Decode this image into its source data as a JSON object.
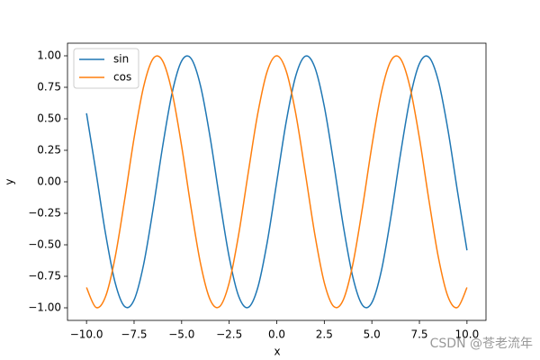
{
  "chart_data": {
    "type": "line",
    "xlabel": "x",
    "ylabel": "y",
    "x": [
      -10,
      -9.5,
      -9,
      -8.5,
      -8,
      -7.5,
      -7,
      -6.5,
      -6,
      -5.5,
      -5,
      -4.5,
      -4,
      -3.5,
      -3,
      -2.5,
      -2,
      -1.5,
      -1,
      -0.5,
      0,
      0.5,
      1,
      1.5,
      2,
      2.5,
      3,
      3.5,
      4,
      4.5,
      5,
      5.5,
      6,
      6.5,
      7,
      7.5,
      8,
      8.5,
      9,
      9.5,
      10
    ],
    "series": [
      {
        "name": "sin",
        "color": "#1f77b4",
        "values": [
          0.544,
          0.075,
          -0.412,
          -0.798,
          -0.989,
          -0.938,
          -0.657,
          -0.215,
          0.279,
          0.706,
          0.959,
          0.978,
          0.757,
          0.351,
          -0.141,
          -0.598,
          -0.909,
          -0.997,
          -0.841,
          -0.479,
          0,
          0.479,
          0.841,
          0.997,
          0.909,
          0.598,
          0.141,
          -0.351,
          -0.757,
          -0.978,
          -0.959,
          -0.706,
          -0.279,
          0.215,
          0.657,
          0.938,
          0.989,
          0.798,
          0.412,
          -0.075,
          -0.544
        ]
      },
      {
        "name": "cos",
        "color": "#ff7f0e",
        "values": [
          -0.839,
          -0.997,
          -0.911,
          -0.602,
          -0.146,
          0.347,
          0.754,
          0.977,
          0.96,
          0.709,
          0.284,
          -0.211,
          -0.654,
          -0.936,
          -0.99,
          -0.801,
          -0.416,
          0.071,
          0.54,
          0.878,
          1,
          0.878,
          0.54,
          0.071,
          -0.416,
          -0.801,
          -0.99,
          -0.936,
          -0.654,
          -0.211,
          0.284,
          0.709,
          0.96,
          0.977,
          0.754,
          0.347,
          -0.146,
          -0.602,
          -0.911,
          -0.997,
          -0.839
        ]
      }
    ],
    "xlim": [
      -11,
      11
    ],
    "ylim": [
      -1.1,
      1.1
    ],
    "xticks": [
      {
        "value": -10,
        "label": "−10.0"
      },
      {
        "value": -7.5,
        "label": "−7.5"
      },
      {
        "value": -5,
        "label": "−5.0"
      },
      {
        "value": -2.5,
        "label": "−2.5"
      },
      {
        "value": 0,
        "label": "0.0"
      },
      {
        "value": 2.5,
        "label": "2.5"
      },
      {
        "value": 5,
        "label": "5.0"
      },
      {
        "value": 7.5,
        "label": "7.5"
      },
      {
        "value": 10,
        "label": "10.0"
      }
    ],
    "yticks": [
      {
        "value": -1,
        "label": "−1.00"
      },
      {
        "value": -0.75,
        "label": "−0.75"
      },
      {
        "value": -0.5,
        "label": "−0.50"
      },
      {
        "value": -0.25,
        "label": "−0.25"
      },
      {
        "value": 0,
        "label": "0.00"
      },
      {
        "value": 0.25,
        "label": "0.25"
      },
      {
        "value": 0.5,
        "label": "0.50"
      },
      {
        "value": 0.75,
        "label": "0.75"
      },
      {
        "value": 1,
        "label": "1.00"
      }
    ],
    "legend": "upper left",
    "watermark": "CSDN @苍老流年"
  }
}
